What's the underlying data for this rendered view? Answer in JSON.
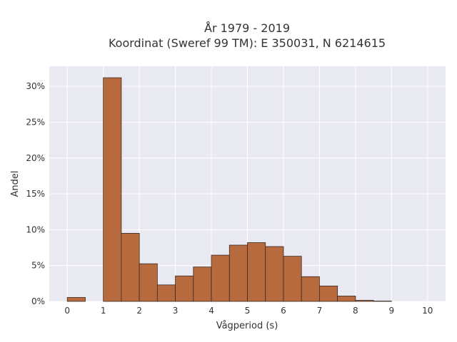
{
  "chart_data": {
    "type": "bar",
    "title_lines": [
      "År 1979 - 2019",
      "Koordinat (Sweref 99 TM): E 350031, N 6214615"
    ],
    "xlabel": "Vågperiod (s)",
    "ylabel": "Andel",
    "xlim": [
      -0.5,
      10.5
    ],
    "ylim": [
      0,
      32.8
    ],
    "x_ticks": [
      0,
      1,
      2,
      3,
      4,
      5,
      6,
      7,
      8,
      9,
      10
    ],
    "x_tick_labels": [
      "0",
      "1",
      "2",
      "3",
      "4",
      "5",
      "6",
      "7",
      "8",
      "9",
      "10"
    ],
    "y_ticks": [
      0,
      5,
      10,
      15,
      20,
      25,
      30
    ],
    "y_tick_labels": [
      "0%",
      "5%",
      "10%",
      "15%",
      "20%",
      "25%",
      "30%"
    ],
    "grid": true,
    "bin_width": 0.5,
    "bins": [
      {
        "start": 0.0,
        "value": 0.55
      },
      {
        "start": 0.5,
        "value": 0.0
      },
      {
        "start": 1.0,
        "value": 31.2
      },
      {
        "start": 1.5,
        "value": 9.5
      },
      {
        "start": 2.0,
        "value": 5.25
      },
      {
        "start": 2.5,
        "value": 2.3
      },
      {
        "start": 3.0,
        "value": 3.55
      },
      {
        "start": 3.5,
        "value": 4.8
      },
      {
        "start": 4.0,
        "value": 6.45
      },
      {
        "start": 4.5,
        "value": 7.85
      },
      {
        "start": 5.0,
        "value": 8.2
      },
      {
        "start": 5.5,
        "value": 7.65
      },
      {
        "start": 6.0,
        "value": 6.3
      },
      {
        "start": 6.5,
        "value": 3.45
      },
      {
        "start": 7.0,
        "value": 2.15
      },
      {
        "start": 7.5,
        "value": 0.75
      },
      {
        "start": 8.0,
        "value": 0.15
      },
      {
        "start": 8.5,
        "value": 0.05
      }
    ],
    "colors": {
      "bar_fill": "#b86a3f",
      "bar_stroke": "#3a2a20",
      "plot_background": "#e9e9f1",
      "grid": "#ffffff"
    }
  }
}
